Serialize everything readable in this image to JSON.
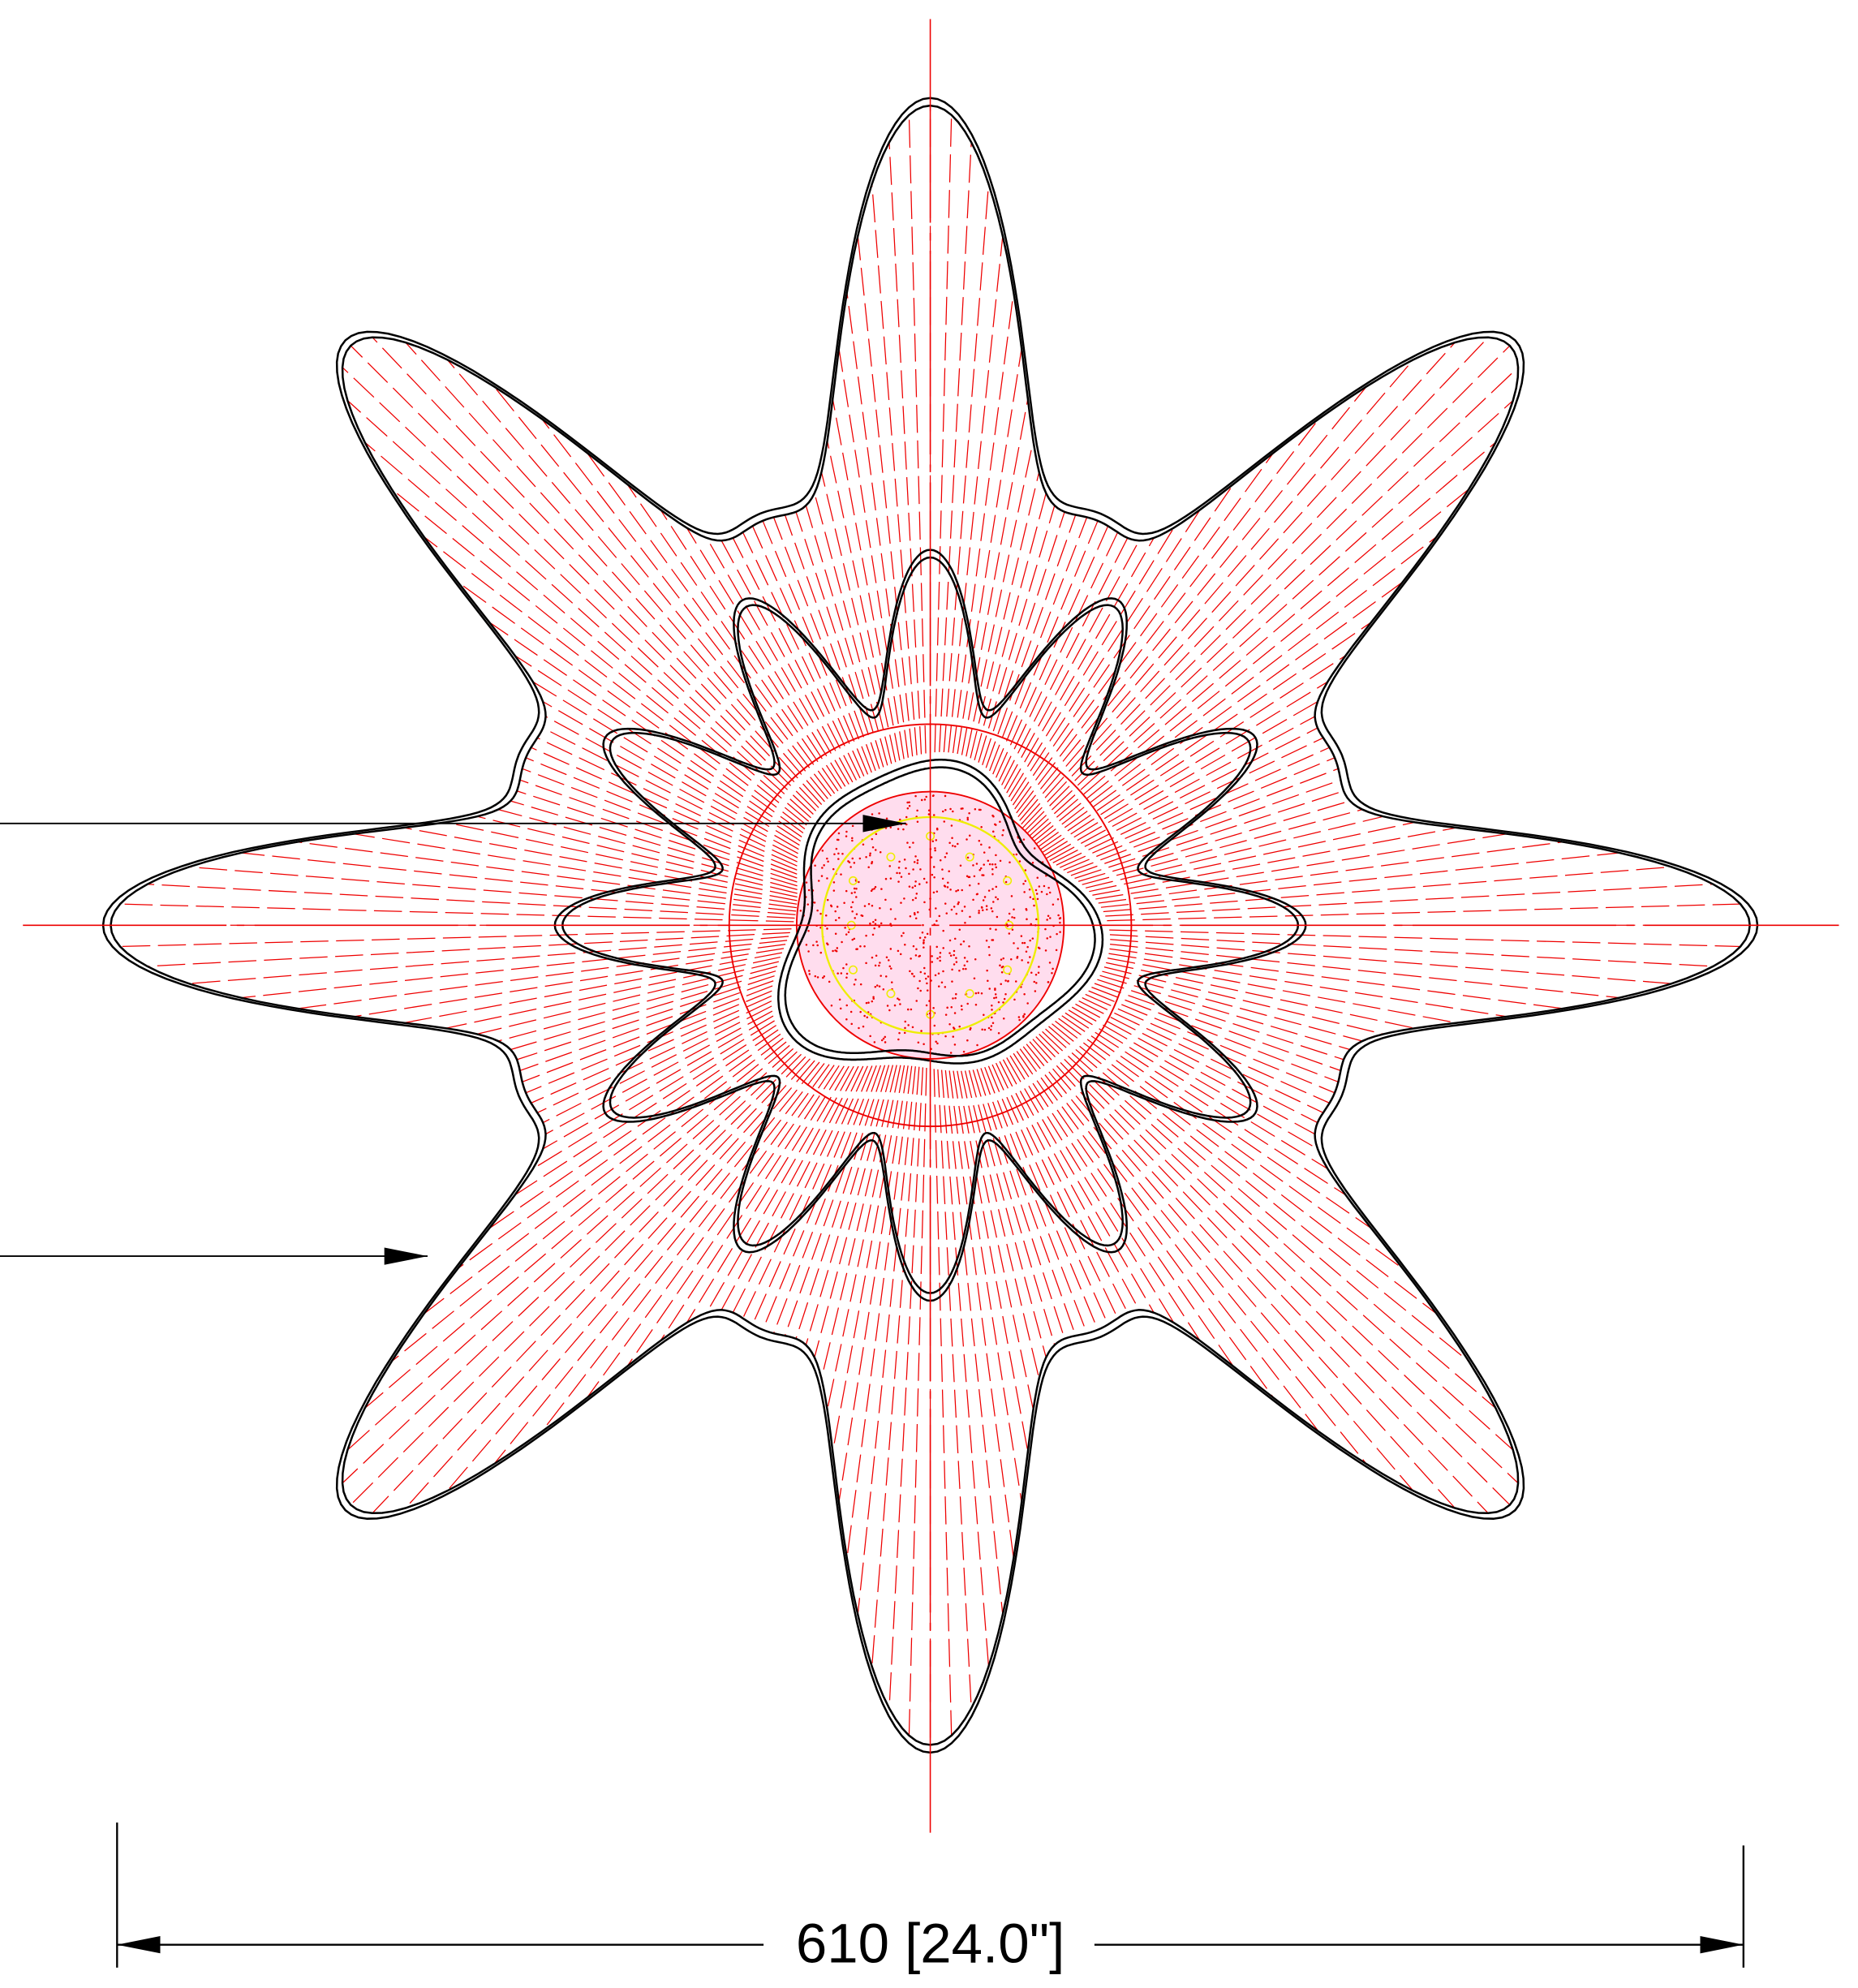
{
  "dimension": {
    "label": "610 [24.0\"]"
  }
}
